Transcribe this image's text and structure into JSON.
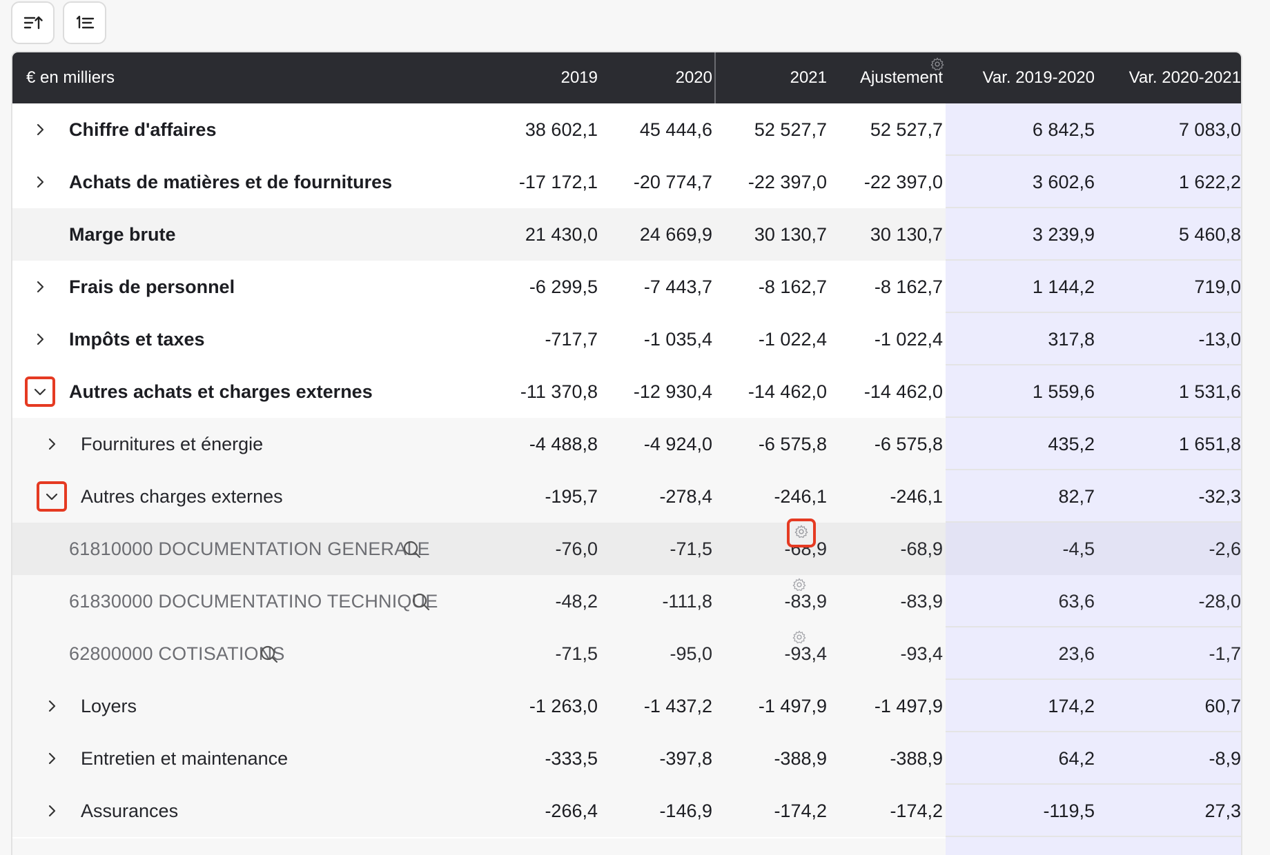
{
  "toolbar": {
    "sort_icon": "sort-descending-icon",
    "numbered_icon": "numbered-list-icon"
  },
  "header": {
    "unit": "€ en milliers",
    "col_2019": "2019",
    "col_2020": "2020",
    "col_2021": "2021",
    "col_adj": "Ajustement",
    "col_var1": "Var. 2019-2020",
    "col_var2": "Var. 2020-2021"
  },
  "colors": {
    "header_bg": "#2b2c31",
    "variation_bg": "#ececfd",
    "highlight": "#e53a22"
  },
  "rows": [
    {
      "label": "Chiffre d'affaires",
      "v2019": "38 602,1",
      "v2020": "45 444,6",
      "v2021": "52 527,7",
      "adj": "52 527,7",
      "var1": "6 842,5",
      "var2": "7 083,0"
    },
    {
      "label": "Achats de matières et de fournitures",
      "v2019": "-17 172,1",
      "v2020": "-20 774,7",
      "v2021": "-22 397,0",
      "adj": "-22 397,0",
      "var1": "3 602,6",
      "var2": "1 622,2"
    },
    {
      "label": "Marge brute",
      "v2019": "21 430,0",
      "v2020": "24 669,9",
      "v2021": "30 130,7",
      "adj": "30 130,7",
      "var1": "3 239,9",
      "var2": "5 460,8"
    },
    {
      "label": "Frais de personnel",
      "v2019": "-6 299,5",
      "v2020": "-7 443,7",
      "v2021": "-8 162,7",
      "adj": "-8 162,7",
      "var1": "1 144,2",
      "var2": "719,0"
    },
    {
      "label": "Impôts et taxes",
      "v2019": "-717,7",
      "v2020": "-1 035,4",
      "v2021": "-1 022,4",
      "adj": "-1 022,4",
      "var1": "317,8",
      "var2": "-13,0"
    },
    {
      "label": "Autres achats et charges externes",
      "v2019": "-11 370,8",
      "v2020": "-12 930,4",
      "v2021": "-14 462,0",
      "adj": "-14 462,0",
      "var1": "1 559,6",
      "var2": "1 531,6"
    },
    {
      "label": "Fournitures et énergie",
      "v2019": "-4 488,8",
      "v2020": "-4 924,0",
      "v2021": "-6 575,8",
      "adj": "-6 575,8",
      "var1": "435,2",
      "var2": "1 651,8"
    },
    {
      "label": "Autres charges externes",
      "v2019": "-195,7",
      "v2020": "-278,4",
      "v2021": "-246,1",
      "adj": "-246,1",
      "var1": "82,7",
      "var2": "-32,3"
    },
    {
      "label": "61810000 DOCUMENTATION GENERALE",
      "v2019": "-76,0",
      "v2020": "-71,5",
      "v2021": "-68,9",
      "adj": "-68,9",
      "var1": "-4,5",
      "var2": "-2,6"
    },
    {
      "label": "61830000 DOCUMENTATINO TECHNIQUE",
      "v2019": "-48,2",
      "v2020": "-111,8",
      "v2021": "-83,9",
      "adj": "-83,9",
      "var1": "63,6",
      "var2": "-28,0"
    },
    {
      "label": "62800000 COTISATIONS",
      "v2019": "-71,5",
      "v2020": "-95,0",
      "v2021": "-93,4",
      "adj": "-93,4",
      "var1": "23,6",
      "var2": "-1,7"
    },
    {
      "label": "Loyers",
      "v2019": "-1 263,0",
      "v2020": "-1 437,2",
      "v2021": "-1 497,9",
      "adj": "-1 497,9",
      "var1": "174,2",
      "var2": "60,7"
    },
    {
      "label": "Entretien et maintenance",
      "v2019": "-333,5",
      "v2020": "-397,8",
      "v2021": "-388,9",
      "adj": "-388,9",
      "var1": "64,2",
      "var2": "-8,9"
    },
    {
      "label": "Assurances",
      "v2019": "-266,4",
      "v2020": "-146,9",
      "v2021": "-174,2",
      "adj": "-174,2",
      "var1": "-119,5",
      "var2": "27,3"
    }
  ]
}
